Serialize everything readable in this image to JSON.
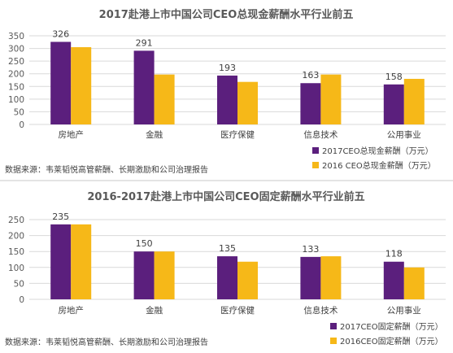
{
  "colors": {
    "series_2017": "#5b1f7d",
    "series_2016": "#f6b818",
    "grid": "#d9d9d9",
    "divider": "#c8c8c8"
  },
  "chart_data": [
    {
      "type": "bar",
      "title": "2017赴港上市中国公司CEO总现金薪酬水平行业前五",
      "categories": [
        "房地产",
        "金融",
        "医疗保健",
        "信息技术",
        "公用事业"
      ],
      "series": [
        {
          "name": "2017CEO总现金薪酬（万元）",
          "values": [
            326,
            291,
            193,
            163,
            158
          ],
          "labeled": true
        },
        {
          "name": "2016 CEO总现金薪酬（万元）",
          "values": [
            305,
            197,
            168,
            197,
            180
          ],
          "labeled": false
        }
      ],
      "yticks": [
        0,
        50,
        100,
        150,
        200,
        250,
        300,
        350
      ],
      "ylim": [
        0,
        350
      ],
      "grid": true,
      "legend": "bottom-right",
      "source": "数据来源：韦莱韬悦高管薪酬、长期激励和公司治理报告"
    },
    {
      "type": "bar",
      "title": "2016-2017赴港上市中国公司CEO固定薪酬水平行业前五",
      "categories": [
        "房地产",
        "金融",
        "医疗保健",
        "信息技术",
        "公用事业"
      ],
      "series": [
        {
          "name": "2017CEO固定薪酬（万元）",
          "values": [
            235,
            150,
            135,
            133,
            118
          ],
          "labeled": true
        },
        {
          "name": "2016CEO固定薪酬（万元）",
          "values": [
            235,
            150,
            118,
            135,
            100
          ],
          "labeled": false
        }
      ],
      "yticks": [
        0,
        50,
        100,
        150,
        200,
        250
      ],
      "ylim": [
        0,
        250
      ],
      "grid": true,
      "legend": "bottom-right",
      "source": "数据来源：韦莱韬悦高管薪酬、长期激励和公司治理报告"
    }
  ]
}
